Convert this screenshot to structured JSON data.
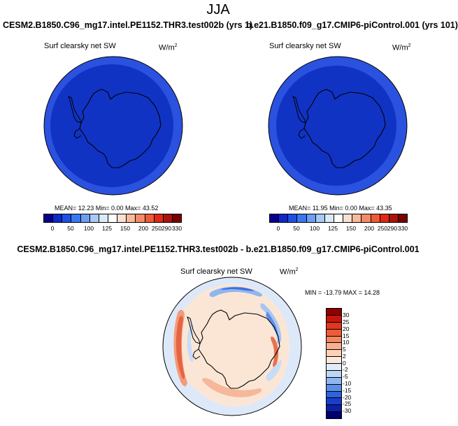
{
  "title": "JJA",
  "panels": [
    {
      "run": "CESM2.B1850.C96_mg17.intel.PE1152.THR3.test002b (yrs 1)",
      "variable": "Surf clearsky net SW",
      "units_base": "W/m",
      "units_exp": "2",
      "stats": "MEAN=  12.23  Min=   0.00  Max=  43.52"
    },
    {
      "run": "b.e21.B1850.f09_g17.CMIP6-piControl.001 (yrs 101)",
      "variable": "Surf clearsky net SW",
      "units_base": "W/m",
      "units_exp": "2",
      "stats": "MEAN=  11.95  Min=   0.00  Max=  43.35"
    }
  ],
  "abs_colorbar": {
    "labels": [
      "0",
      "50",
      "100",
      "125",
      "150",
      "200",
      "250",
      "290",
      "330"
    ],
    "colors": [
      "#08008c",
      "#0d29cc",
      "#1f4fe6",
      "#3a78f0",
      "#6d9ef2",
      "#a8c8f5",
      "#dce9f7",
      "#ffffff",
      "#fbe0cf",
      "#f8b99c",
      "#f48b68",
      "#ef5a37",
      "#dd2a14",
      "#a8140b",
      "#7a0000"
    ]
  },
  "diff_panel": {
    "title": "CESM2.B1850.C96_mg17.intel.PE1152.THR3.test002b - b.e21.B1850.f09_g17.CMIP6-piControl.001",
    "variable": "Surf clearsky net SW",
    "units_base": "W/m",
    "units_exp": "2",
    "stats": "MIN = -13.79  MAX =  14.28"
  },
  "diff_colorbar": {
    "labels": [
      "30",
      "25",
      "20",
      "15",
      "10",
      "5",
      "2",
      "0",
      "-2",
      "-5",
      "-10",
      "-15",
      "-20",
      "-25",
      "-30"
    ],
    "colors": [
      "#8f0000",
      "#c8160e",
      "#e0371d",
      "#ee5b3a",
      "#f48660",
      "#f8b08e",
      "#fbd2b8",
      "#fde9dc",
      "#e0ecfa",
      "#bcd6f5",
      "#8fb6f0",
      "#5b8eea",
      "#2d62e0",
      "#1a3ecc",
      "#0d1fa8",
      "#02006e"
    ]
  }
}
